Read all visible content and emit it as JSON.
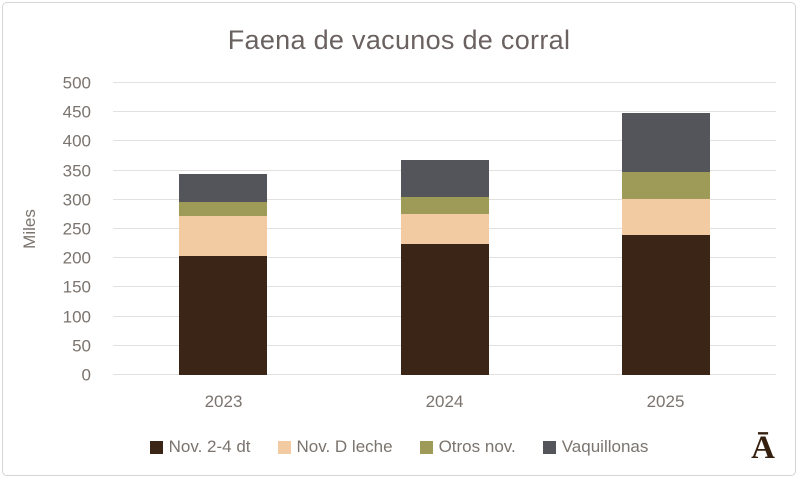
{
  "chart_data": {
    "type": "bar",
    "stacked": true,
    "title": "Faena de vacunos de corral",
    "ylabel": "Miles",
    "xlabel": "",
    "categories": [
      "2023",
      "2024",
      "2025"
    ],
    "series": [
      {
        "name": "Nov. 2-4 dt",
        "color": "#3a2517",
        "values": [
          203,
          225,
          239
        ]
      },
      {
        "name": "Nov. D leche",
        "color": "#f2cba3",
        "values": [
          70,
          50,
          63
        ]
      },
      {
        "name": "Otros nov.",
        "color": "#9e9a58",
        "values": [
          23,
          30,
          46
        ]
      },
      {
        "name": "Vaquillonas",
        "color": "#54555a",
        "values": [
          49,
          63,
          101
        ]
      }
    ],
    "totals": [
      345,
      368,
      449
    ],
    "ylim": [
      0,
      500
    ],
    "ytick_step": 50,
    "grid": true,
    "legend_position": "bottom"
  },
  "branding": {
    "logo_text": "Ā",
    "logo_color": "#35200f"
  },
  "style": {
    "title_color": "#6a6260",
    "axis_text_color": "#7b746e",
    "gridline_color": "#e3e1df",
    "border_color": "#d7d4d2",
    "background": "#ffffff"
  }
}
